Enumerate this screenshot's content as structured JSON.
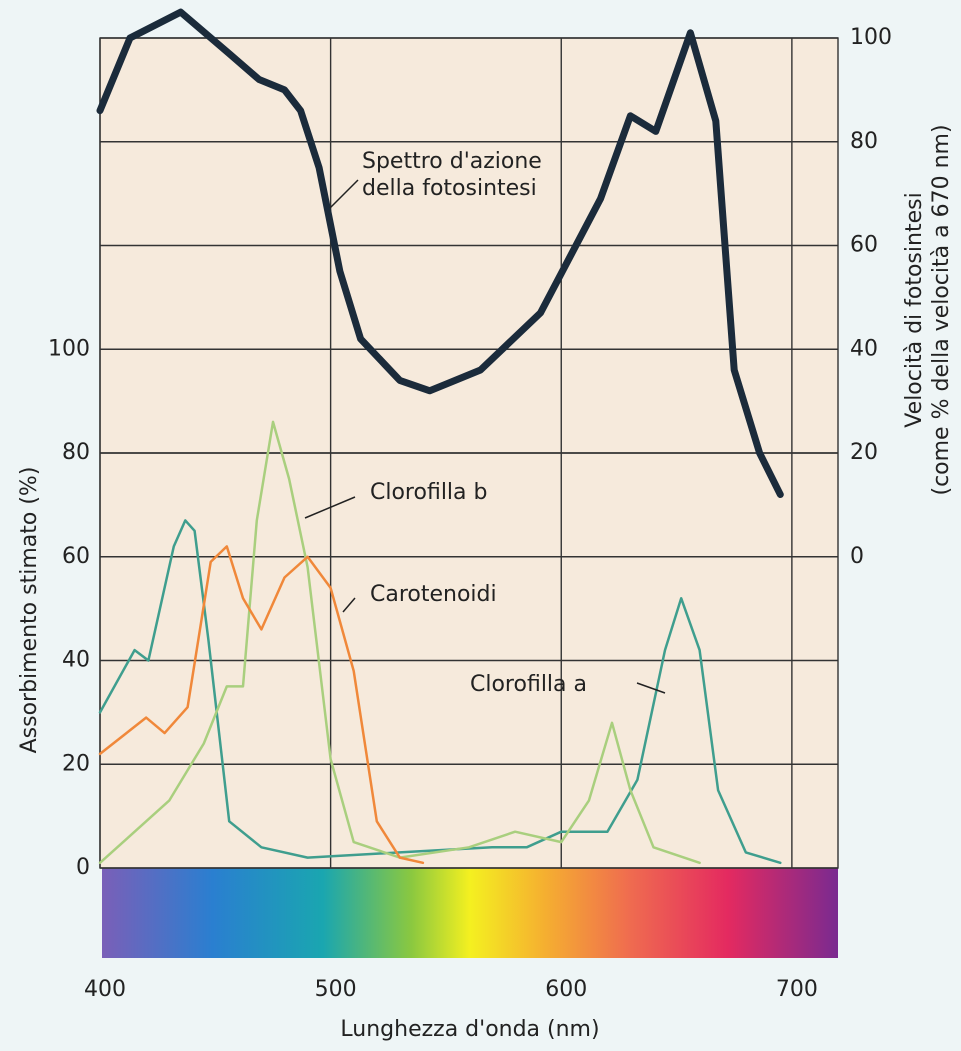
{
  "chart_data": {
    "type": "line",
    "xlabel": "Lunghezza d'onda (nm)",
    "ylabel": "Assorbimento stimato (%)",
    "y2label": [
      "Velocità di fotosintesi",
      "(come % della velocità a 670 nm)"
    ],
    "xlim": [
      400,
      720
    ],
    "xticks": [
      400,
      500,
      600,
      700
    ],
    "ylim": [
      0,
      160
    ],
    "yticks": [
      0,
      20,
      40,
      60,
      80,
      100
    ],
    "y2lim": [
      -60,
      100
    ],
    "y2ticks": [
      0,
      20,
      40,
      60,
      80,
      100
    ],
    "grid": true,
    "series": [
      {
        "name": "Clorofilla a",
        "color": "#3f9e8e",
        "x": [
          400,
          415,
          421,
          432,
          437,
          441,
          447,
          456,
          470,
          490,
          530,
          570,
          585,
          600,
          620,
          633,
          645,
          652,
          660,
          668,
          680,
          695
        ],
        "values": [
          30,
          42,
          40,
          62,
          67,
          65,
          44,
          9,
          4,
          2,
          3,
          4,
          4,
          7,
          7,
          17,
          42,
          52,
          42,
          15,
          3,
          1
        ]
      },
      {
        "name": "Clorofilla b",
        "color": "#a9cf7e",
        "x": [
          400,
          430,
          445,
          455,
          462,
          468,
          475,
          482,
          490,
          500,
          510,
          530,
          560,
          580,
          600,
          612,
          622,
          630,
          640,
          660
        ],
        "values": [
          1,
          13,
          24,
          35,
          35,
          67,
          86,
          75,
          58,
          21,
          5,
          2,
          4,
          7,
          5,
          13,
          28,
          15,
          4,
          1
        ]
      },
      {
        "name": "Carotenoidi",
        "color": "#f0883a",
        "x": [
          400,
          420,
          428,
          438,
          448,
          455,
          462,
          470,
          480,
          490,
          500,
          510,
          520,
          530,
          540
        ],
        "values": [
          22,
          29,
          26,
          31,
          59,
          62,
          52,
          46,
          56,
          60,
          54,
          38,
          9,
          2,
          1
        ]
      },
      {
        "name": "Spettro d'azione della fotosintesi",
        "color": "#1b2b3b",
        "axis": "y2",
        "x": [
          400,
          413,
          435,
          456,
          469,
          480,
          487,
          495,
          504,
          513,
          530,
          543,
          565,
          591,
          617,
          630,
          641,
          656,
          667,
          675,
          686,
          695
        ],
        "values": [
          86,
          100,
          105,
          97,
          92,
          90,
          86,
          75,
          55,
          42,
          34,
          32,
          36,
          47,
          69,
          85,
          82,
          101,
          84,
          36,
          20,
          12
        ]
      }
    ]
  }
}
